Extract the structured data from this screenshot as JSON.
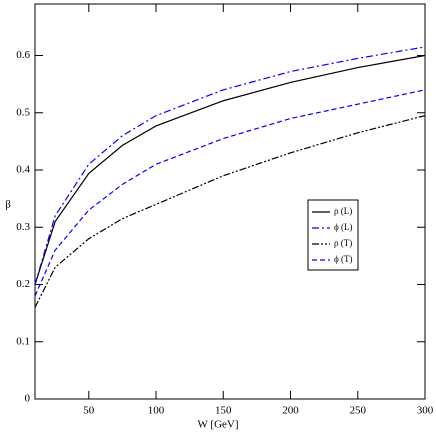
{
  "chart_data": {
    "type": "line",
    "x_label": "W [GeV]",
    "y_label": "β",
    "x": [
      10,
      25,
      50,
      75,
      100,
      150,
      200,
      250,
      300
    ],
    "series": [
      {
        "name": "ρ (L)",
        "color": "#000000",
        "dash": "solid",
        "values": [
          0.2,
          0.31,
          0.394,
          0.443,
          0.477,
          0.521,
          0.553,
          0.579,
          0.6
        ]
      },
      {
        "name": "ϕ (L)",
        "color": "#0000ff",
        "dash": "dashdot",
        "values": [
          0.2,
          0.32,
          0.41,
          0.46,
          0.495,
          0.54,
          0.572,
          0.595,
          0.615
        ]
      },
      {
        "name": "ρ (T)",
        "color": "#000000",
        "dash": "dashdotdot",
        "values": [
          0.16,
          0.23,
          0.28,
          0.315,
          0.34,
          0.39,
          0.43,
          0.465,
          0.495
        ]
      },
      {
        "name": "ϕ (T)",
        "color": "#0000ff",
        "dash": "dashed",
        "values": [
          0.18,
          0.26,
          0.33,
          0.375,
          0.41,
          0.455,
          0.49,
          0.515,
          0.54
        ]
      }
    ],
    "xlim": [
      10,
      300
    ],
    "xticks": [
      50,
      100,
      150,
      200,
      250,
      300
    ],
    "ylim": [
      0,
      0.69
    ],
    "yticks": [
      0,
      0.1,
      0.2,
      0.3,
      0.4,
      0.5,
      0.6
    ],
    "grid": false,
    "legend": "right"
  }
}
